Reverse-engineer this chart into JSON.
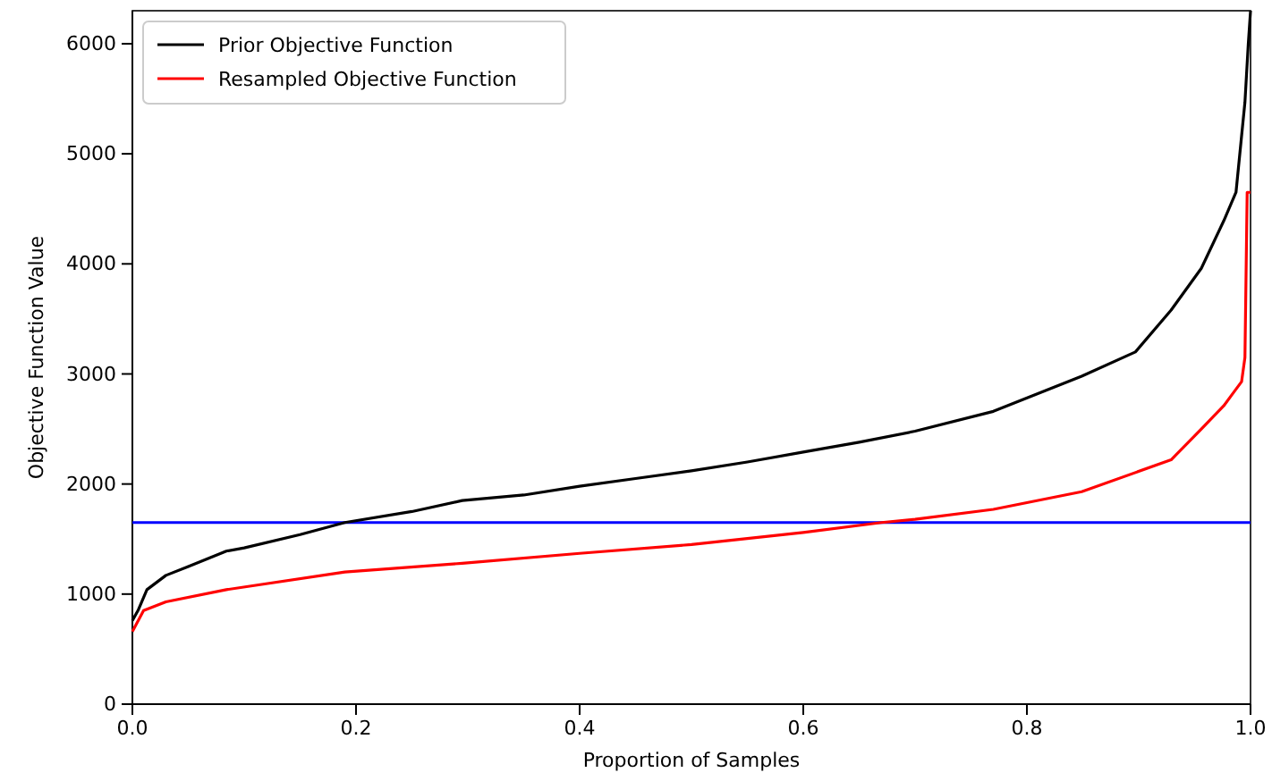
{
  "chart_data": {
    "type": "line",
    "xlabel": "Proportion of Samples",
    "ylabel": "Objective Function Value",
    "xlim": [
      0,
      1
    ],
    "ylim": [
      0,
      6300
    ],
    "xticks": [
      {
        "value": 0,
        "label": "0.0"
      },
      0.2,
      0.4,
      0.6,
      0.8,
      {
        "value": 1,
        "label": "1.0"
      }
    ],
    "yticks": [
      0,
      1000,
      2000,
      3000,
      4000,
      5000,
      6000
    ],
    "legend": "top left",
    "grid": false,
    "ref_lines": [
      {
        "axis": "y",
        "value": 1650,
        "color": "#0000ff"
      }
    ],
    "series": [
      {
        "name": "Prior Objective Function",
        "color": "#000000",
        "x": [
          0,
          0.005,
          0.013,
          0.03,
          0.05,
          0.084,
          0.1,
          0.15,
          0.19,
          0.25,
          0.295,
          0.35,
          0.4,
          0.45,
          0.5,
          0.55,
          0.6,
          0.65,
          0.7,
          0.77,
          0.849,
          0.897,
          0.929,
          0.956,
          0.976,
          0.987,
          0.995,
          0.998,
          1.0
        ],
        "values": [
          760,
          850,
          1040,
          1170,
          1250,
          1390,
          1420,
          1540,
          1650,
          1750,
          1850,
          1900,
          1980,
          2050,
          2120,
          2200,
          2290,
          2380,
          2480,
          2660,
          2980,
          3200,
          3580,
          3960,
          4390,
          4650,
          5470,
          6000,
          6300
        ]
      },
      {
        "name": "Resampled Objective Function",
        "color": "#ff0000",
        "x": [
          0,
          0.01,
          0.03,
          0.084,
          0.19,
          0.295,
          0.4,
          0.5,
          0.6,
          0.67,
          0.7,
          0.77,
          0.849,
          0.929,
          0.956,
          0.976,
          0.984,
          0.992,
          0.995,
          0.997,
          1.0
        ],
        "values": [
          660,
          850,
          930,
          1040,
          1200,
          1280,
          1370,
          1450,
          1560,
          1650,
          1680,
          1770,
          1930,
          2220,
          2500,
          2710,
          2820,
          2930,
          3150,
          4650,
          4650
        ]
      }
    ]
  }
}
